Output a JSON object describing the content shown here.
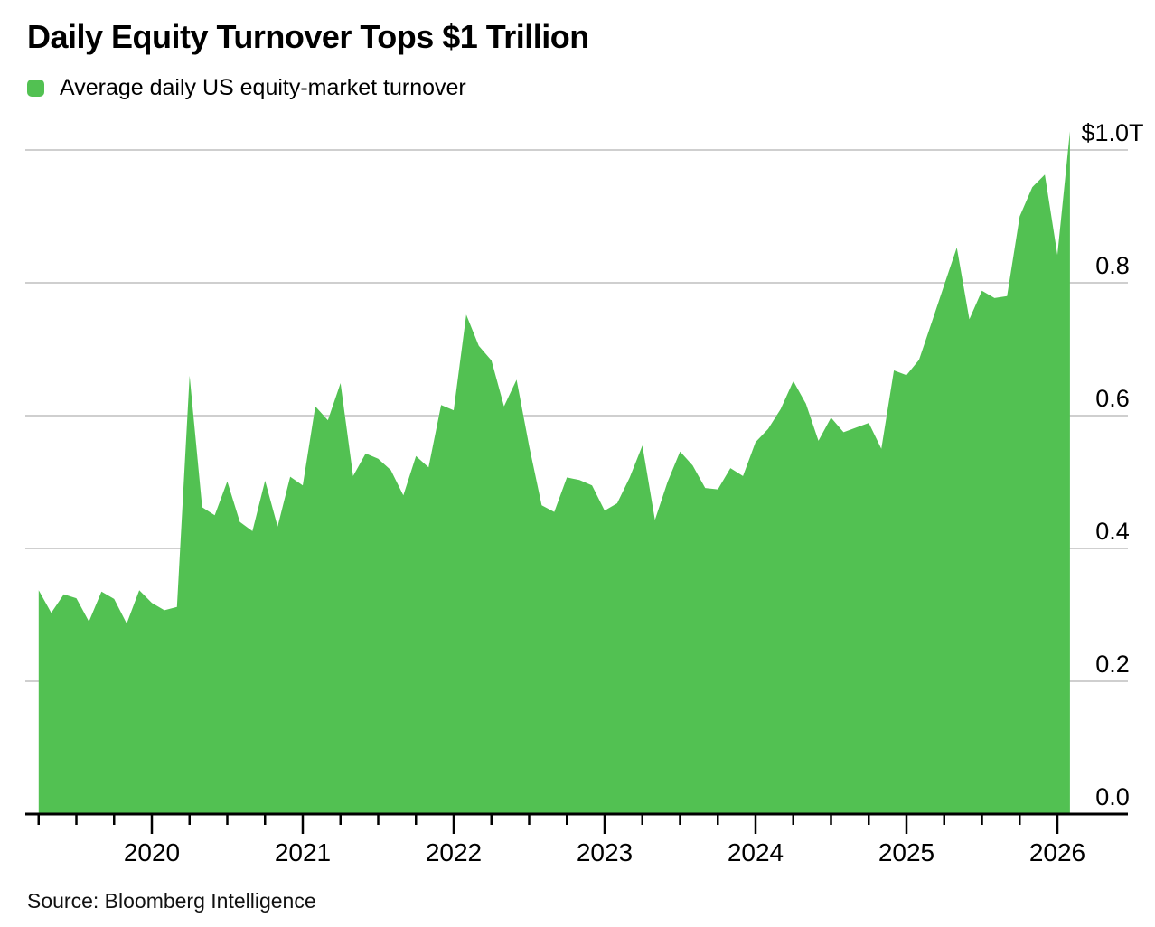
{
  "header": {
    "title": "Daily Equity Turnover Tops $1 Trillion"
  },
  "legend": {
    "label": "Average daily US equity-market turnover",
    "swatch_color": "#52c152"
  },
  "source": {
    "text": "Source: Bloomberg Intelligence"
  },
  "colors": {
    "area_green": "#52c152",
    "gridline": "#cfcfcf",
    "axis": "#000000",
    "text": "#000000"
  },
  "chart_data": {
    "type": "area",
    "title": "Daily Equity Turnover Tops $1 Trillion",
    "series_name": "Average daily US equity-market turnover",
    "unit": "USD trillions, average daily turnover",
    "grid": "horizontal",
    "legend_position": "top-left",
    "area_color": "#52c152",
    "x_start": "2019-04",
    "x_end": "2026-02",
    "x_tick_years": [
      2020,
      2021,
      2022,
      2023,
      2024,
      2025,
      2026
    ],
    "x_tick_labels": [
      "2020",
      "2021",
      "2022",
      "2023",
      "2024",
      "2025",
      "2026"
    ],
    "x_minor_tick_interval_months": 3,
    "y_tick_labels": [
      "$1.0T",
      "0.8",
      "0.6",
      "0.4",
      "0.2",
      "0.0"
    ],
    "y_tick_values": [
      1.0,
      0.8,
      0.6,
      0.4,
      0.2,
      0.0
    ],
    "ylim": [
      0,
      1.05
    ],
    "dates": [
      "2019-04",
      "2019-05",
      "2019-06",
      "2019-07",
      "2019-08",
      "2019-09",
      "2019-10",
      "2019-11",
      "2019-12",
      "2020-01",
      "2020-02",
      "2020-03",
      "2020-04",
      "2020-05",
      "2020-06",
      "2020-07",
      "2020-08",
      "2020-09",
      "2020-10",
      "2020-11",
      "2020-12",
      "2021-01",
      "2021-02",
      "2021-03",
      "2021-04",
      "2021-05",
      "2021-06",
      "2021-07",
      "2021-08",
      "2021-09",
      "2021-10",
      "2021-11",
      "2021-12",
      "2022-01",
      "2022-02",
      "2022-03",
      "2022-04",
      "2022-05",
      "2022-06",
      "2022-07",
      "2022-08",
      "2022-09",
      "2022-10",
      "2022-11",
      "2022-12",
      "2023-01",
      "2023-02",
      "2023-03",
      "2023-04",
      "2023-05",
      "2023-06",
      "2023-07",
      "2023-08",
      "2023-09",
      "2023-10",
      "2023-11",
      "2023-12",
      "2024-01",
      "2024-02",
      "2024-03",
      "2024-04",
      "2024-05",
      "2024-06",
      "2024-07",
      "2024-08",
      "2024-09",
      "2024-10",
      "2024-11",
      "2024-12",
      "2025-01",
      "2025-02",
      "2025-03",
      "2025-04",
      "2025-05",
      "2025-06",
      "2025-07",
      "2025-08",
      "2025-09",
      "2025-10",
      "2025-11",
      "2025-12",
      "2026-01",
      "2026-02"
    ],
    "values": [
      0.337,
      0.303,
      0.331,
      0.325,
      0.29,
      0.335,
      0.324,
      0.287,
      0.337,
      0.318,
      0.307,
      0.312,
      0.66,
      0.462,
      0.45,
      0.501,
      0.44,
      0.426,
      0.502,
      0.433,
      0.508,
      0.495,
      0.614,
      0.593,
      0.649,
      0.509,
      0.543,
      0.535,
      0.518,
      0.48,
      0.539,
      0.522,
      0.616,
      0.608,
      0.752,
      0.705,
      0.683,
      0.614,
      0.654,
      0.554,
      0.465,
      0.455,
      0.507,
      0.503,
      0.495,
      0.457,
      0.468,
      0.507,
      0.555,
      0.443,
      0.5,
      0.546,
      0.525,
      0.491,
      0.489,
      0.521,
      0.509,
      0.56,
      0.58,
      0.61,
      0.652,
      0.618,
      0.562,
      0.597,
      0.575,
      0.582,
      0.589,
      0.55,
      0.668,
      0.661,
      0.684,
      0.74,
      0.797,
      0.853,
      0.745,
      0.788,
      0.777,
      0.78,
      0.9,
      0.944,
      0.963,
      0.842,
      1.028
    ]
  }
}
